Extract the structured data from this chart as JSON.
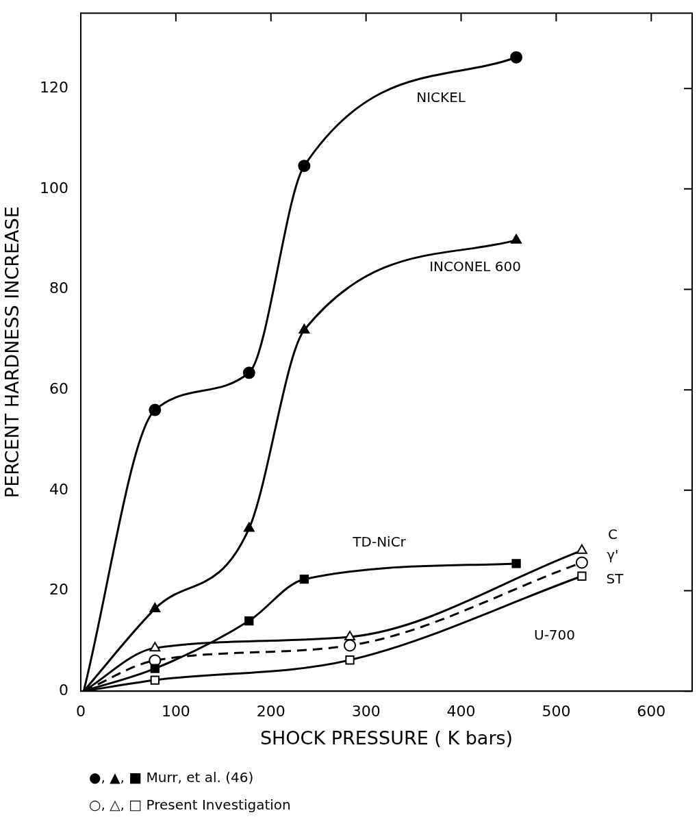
{
  "chart_data": {
    "type": "line",
    "xlabel": "SHOCK PRESSURE ( K bars)",
    "ylabel": "PERCENT HARDNESS INCREASE",
    "xlim": [
      0,
      643
    ],
    "ylim": [
      0,
      135
    ],
    "xticks": [
      0,
      100,
      200,
      300,
      400,
      500,
      600
    ],
    "yticks": [
      0,
      20,
      40,
      60,
      80,
      100,
      120
    ],
    "grid": false,
    "legend": false,
    "line_style": "solid",
    "series": [
      {
        "name": "NICKEL",
        "color": "#000000",
        "marker": "circle",
        "x": [
          3,
          78,
          177,
          235,
          458
        ],
        "values": [
          0,
          56,
          63.4,
          104.6,
          126.2
        ]
      },
      {
        "name": "INCONEL 600",
        "color": "#000000",
        "marker": "triangle",
        "x": [
          3,
          78,
          177,
          235,
          458
        ],
        "values": [
          0,
          16.4,
          32.4,
          71.9,
          89.8
        ]
      },
      {
        "name": "TD-NiCr",
        "color": "#000000",
        "marker": "square",
        "x": [
          3,
          78,
          177,
          235,
          458
        ],
        "values": [
          0,
          4.5,
          14,
          22.3,
          25.4
        ]
      },
      {
        "name": "C",
        "color": "#000000",
        "marker": "triangle",
        "x": [
          3,
          78,
          283,
          527
        ],
        "values": [
          0,
          8.6,
          10.8,
          28
        ]
      },
      {
        "name": "γ'",
        "color": "#000000",
        "marker": "circle",
        "line_style": "dashed",
        "x": [
          3,
          78,
          283,
          527
        ],
        "values": [
          0,
          6.1,
          9.1,
          25.6
        ]
      },
      {
        "name": "ST",
        "color": "#000000",
        "marker": "square",
        "x": [
          3,
          78,
          283,
          527
        ],
        "values": [
          0,
          2.2,
          6.2,
          22.9
        ]
      }
    ],
    "annotations": [
      "U-700",
      "●, ▲, ■  Murr, et al. (46)",
      "○, △, □  Present Investigation"
    ]
  }
}
